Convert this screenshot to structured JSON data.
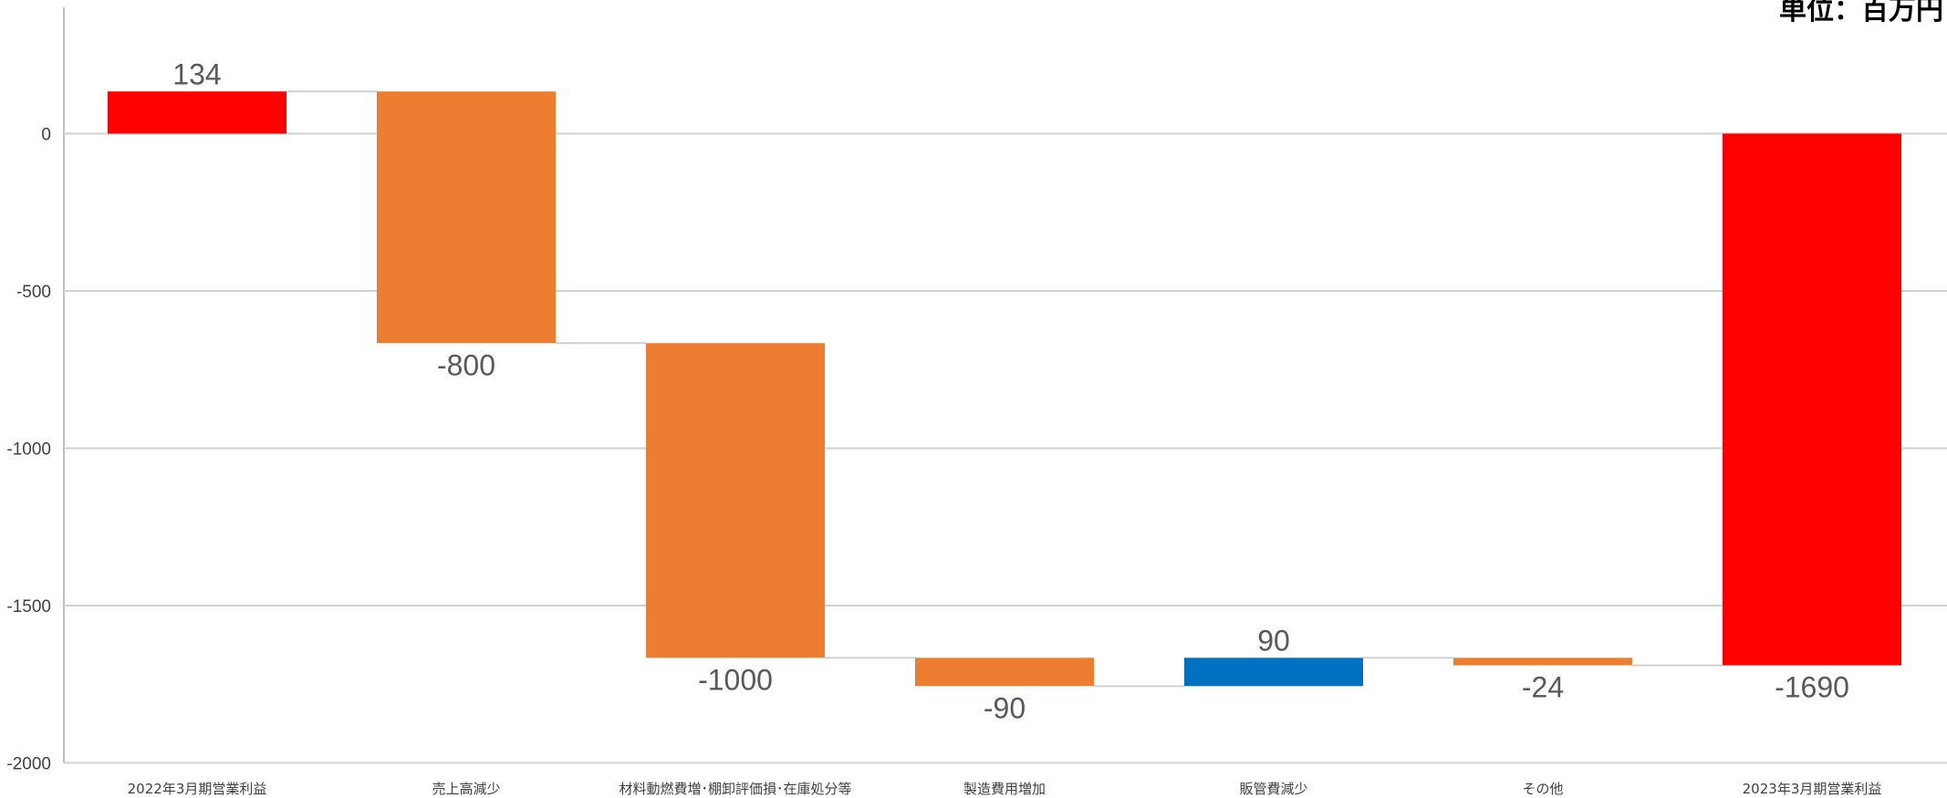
{
  "chart_data": {
    "type": "bar",
    "subtype": "waterfall",
    "title": "",
    "unit_label": "単位：百万円",
    "xlabel": "",
    "ylabel": "",
    "ylim": [
      -2000,
      300
    ],
    "yticks": [
      0,
      -500,
      -1000,
      -1500,
      -2000
    ],
    "grid": true,
    "legend": "none",
    "categories": [
      "2022年3月期営業利益",
      "売上高減少",
      "材料動燃費増･棚卸評価損･在庫処分等",
      "製造費用増加",
      "販管費減少",
      "その他",
      "2023年3月期営業利益"
    ],
    "bars": [
      {
        "start": 0,
        "end": 134,
        "label": "134",
        "color": "#FF0000"
      },
      {
        "start": 134,
        "end": -666,
        "label": "-800",
        "color": "#ED7D31"
      },
      {
        "start": -666,
        "end": -1666,
        "label": "-1000",
        "color": "#ED7D31"
      },
      {
        "start": -1666,
        "end": -1756,
        "label": "-90",
        "color": "#ED7D31"
      },
      {
        "start": -1756,
        "end": -1666,
        "label": "90",
        "color": "#0070C0"
      },
      {
        "start": -1666,
        "end": -1690,
        "label": "-24",
        "color": "#ED7D31"
      },
      {
        "start": 0,
        "end": -1690,
        "label": "-1690",
        "color": "#FF0000"
      }
    ]
  }
}
